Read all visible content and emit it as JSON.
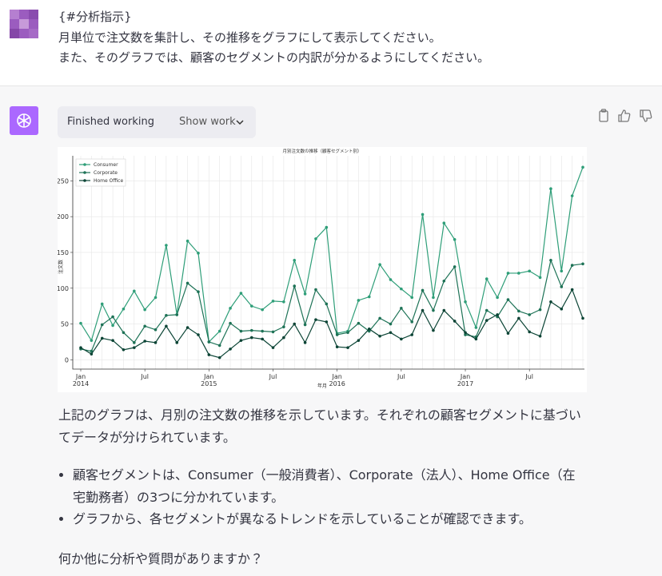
{
  "user_message": {
    "lines": [
      "{#分析指示}",
      "月単位で注文数を集計し、その推移をグラフにして表示してください。",
      "また、そのグラフでは、顧客のセグメントの内訳が分かるようにしてください。"
    ]
  },
  "assistant": {
    "status": "Finished working",
    "show_work": "Show work",
    "paragraph": "上記のグラフは、月別の注文数の推移を示しています。それぞれの顧客セグメントに基づいてデータが分けられています。",
    "bullets": [
      "顧客セグメントは、Consumer（一般消費者）、Corporate（法人）、Home Office（在宅勤務者）の3つに分かれています。",
      "グラフから、各セグメントが異なるトレンドを示していることが確認できます。"
    ],
    "closing": "何か他に分析や質問がありますか？"
  },
  "chart_data": {
    "type": "line",
    "title": "月別注文数の推移（顧客セグメント別）",
    "x_label": "年月",
    "y_label": "注文数",
    "x": [
      "2014-01",
      "2014-02",
      "2014-03",
      "2014-04",
      "2014-05",
      "2014-06",
      "2014-07",
      "2014-08",
      "2014-09",
      "2014-10",
      "2014-11",
      "2014-12",
      "2015-01",
      "2015-02",
      "2015-03",
      "2015-04",
      "2015-05",
      "2015-06",
      "2015-07",
      "2015-08",
      "2015-09",
      "2015-10",
      "2015-11",
      "2015-12",
      "2016-01",
      "2016-02",
      "2016-03",
      "2016-04",
      "2016-05",
      "2016-06",
      "2016-07",
      "2016-08",
      "2016-09",
      "2016-10",
      "2016-11",
      "2016-12",
      "2017-01",
      "2017-02",
      "2017-03",
      "2017-04",
      "2017-05",
      "2017-06",
      "2017-07",
      "2017-08",
      "2017-09",
      "2017-10",
      "2017-11",
      "2017-12"
    ],
    "xticks": [
      {
        "value": "2014-01",
        "label": [
          "Jan",
          "2014"
        ]
      },
      {
        "value": "2014-07",
        "label": [
          "Jul"
        ]
      },
      {
        "value": "2015-01",
        "label": [
          "Jan",
          "2015"
        ]
      },
      {
        "value": "2015-07",
        "label": [
          "Jul"
        ]
      },
      {
        "value": "2016-01",
        "label": [
          "Jan",
          "2016"
        ]
      },
      {
        "value": "2016-07",
        "label": [
          "Jul"
        ]
      },
      {
        "value": "2017-01",
        "label": [
          "Jan",
          "2017"
        ]
      },
      {
        "value": "2017-07",
        "label": [
          "Jul"
        ]
      }
    ],
    "ylim": [
      -13,
      285
    ],
    "yticks": [
      0,
      50,
      100,
      150,
      200,
      250
    ],
    "grid": true,
    "legend": "upper left",
    "series": [
      {
        "name": "Consumer",
        "color": "#2e9e78",
        "values": [
          51,
          27,
          78,
          48,
          71,
          96,
          70,
          87,
          160,
          63,
          166,
          149,
          25,
          40,
          72,
          93,
          75,
          70,
          82,
          81,
          139,
          92,
          169,
          185,
          37,
          40,
          83,
          88,
          133,
          112,
          99,
          87,
          203,
          87,
          191,
          168,
          81,
          45,
          113,
          87,
          121,
          121,
          124,
          115,
          239,
          124,
          229,
          269
        ]
      },
      {
        "name": "Corporate",
        "color": "#1d7256",
        "values": [
          15,
          12,
          49,
          60,
          38,
          24,
          47,
          42,
          62,
          63,
          107,
          95,
          25,
          20,
          51,
          40,
          41,
          40,
          39,
          46,
          103,
          49,
          98,
          78,
          35,
          38,
          51,
          40,
          58,
          50,
          72,
          53,
          97,
          69,
          110,
          130,
          35,
          32,
          69,
          60,
          84,
          68,
          63,
          70,
          139,
          102,
          132,
          134
        ]
      },
      {
        "name": "Home Office",
        "color": "#0b4435",
        "values": [
          17,
          8,
          30,
          27,
          14,
          17,
          26,
          24,
          47,
          24,
          45,
          35,
          7,
          3,
          15,
          27,
          31,
          29,
          17,
          31,
          50,
          24,
          56,
          53,
          18,
          17,
          27,
          43,
          33,
          38,
          29,
          35,
          69,
          41,
          69,
          54,
          38,
          29,
          55,
          63,
          37,
          58,
          39,
          33,
          81,
          71,
          98,
          58
        ]
      }
    ]
  }
}
